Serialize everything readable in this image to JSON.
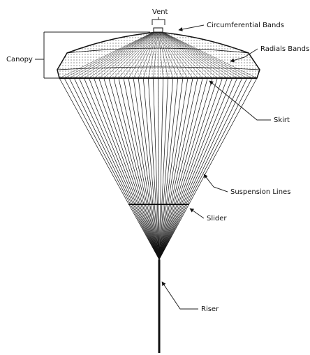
{
  "labels": {
    "vent": "Vent",
    "circumferential_bands": "Circumferential Bands",
    "canopy": "Canopy",
    "radials_bands": "Radials Bands",
    "skirt": "Skirt",
    "suspension_lines": "Suspension Lines",
    "slider": "Slider",
    "riser": "Riser"
  }
}
